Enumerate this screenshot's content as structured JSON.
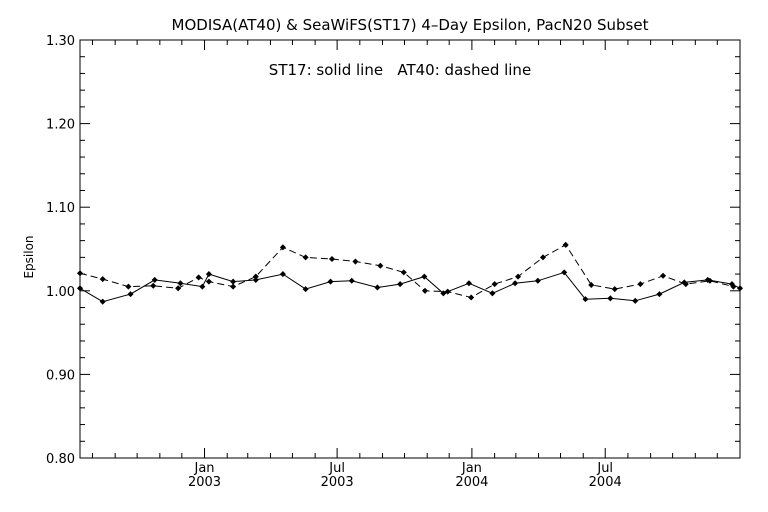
{
  "chart_data": {
    "type": "line",
    "title": "MODISA(AT40) & SeaWiFS(ST17) 4–Day Epsilon, PacN20 Subset",
    "annotation": "ST17: solid line   AT40: dashed line",
    "xlabel": "",
    "ylabel": "Epsilon",
    "ylim": [
      0.8,
      1.3
    ],
    "yticks": [
      "0.80",
      "0.90",
      "1.00",
      "1.10",
      "1.20",
      "1.30"
    ],
    "xticks": [
      {
        "month": "Jan",
        "year": "2003",
        "x": "2003-01"
      },
      {
        "month": "Jul",
        "year": "2003",
        "x": "2003-07"
      },
      {
        "month": "Jan",
        "year": "2004",
        "x": "2004-01"
      },
      {
        "month": "Jul",
        "year": "2004",
        "x": "2004-07"
      }
    ],
    "xlim": [
      "2002-07-15",
      "2005-01-01"
    ],
    "series": [
      {
        "name": "ST17",
        "line_style": "solid",
        "x": [
          "2002-07-15",
          "2002-08-15",
          "2002-09-22",
          "2002-10-25",
          "2002-11-29",
          "2002-12-29",
          "2003-01-07",
          "2003-02-09",
          "2003-03-12",
          "2003-04-18",
          "2003-05-19",
          "2003-06-22",
          "2003-07-21",
          "2003-08-25",
          "2003-09-25",
          "2003-10-28",
          "2003-11-23",
          "2003-12-28",
          "2004-01-29",
          "2004-02-29",
          "2004-03-31",
          "2004-05-06",
          "2004-06-04",
          "2004-07-08",
          "2004-08-11",
          "2004-09-13",
          "2004-10-17",
          "2004-11-18",
          "2004-12-21",
          "2005-01-01"
        ],
        "values": [
          1.003,
          0.987,
          0.996,
          1.013,
          1.009,
          1.005,
          1.02,
          1.011,
          1.013,
          1.02,
          1.002,
          1.011,
          1.012,
          1.004,
          1.008,
          1.017,
          0.997,
          1.009,
          0.997,
          1.009,
          1.012,
          1.022,
          0.99,
          0.991,
          0.988,
          0.996,
          1.01,
          1.013,
          1.008,
          1.003
        ]
      },
      {
        "name": "AT40",
        "line_style": "dashed",
        "x": [
          "2002-07-15",
          "2002-08-15",
          "2002-09-19",
          "2002-10-23",
          "2002-11-26",
          "2002-12-24",
          "2003-01-07",
          "2003-02-09",
          "2003-03-12",
          "2003-04-18",
          "2003-05-19",
          "2003-06-24",
          "2003-07-26",
          "2003-08-29",
          "2003-09-30",
          "2003-10-29",
          "2003-11-29",
          "2003-12-31",
          "2004-02-01",
          "2004-03-04",
          "2004-04-07",
          "2004-05-08",
          "2004-06-12",
          "2004-07-14",
          "2004-08-18",
          "2004-09-18",
          "2004-10-19",
          "2004-11-21",
          "2004-12-23"
        ],
        "values": [
          1.021,
          1.014,
          1.005,
          1.006,
          1.003,
          1.016,
          1.011,
          1.005,
          1.017,
          1.052,
          1.04,
          1.038,
          1.035,
          1.03,
          1.022,
          1.0,
          0.999,
          0.992,
          1.008,
          1.017,
          1.04,
          1.055,
          1.007,
          1.002,
          1.008,
          1.018,
          1.008,
          1.012,
          1.005
        ]
      }
    ]
  }
}
